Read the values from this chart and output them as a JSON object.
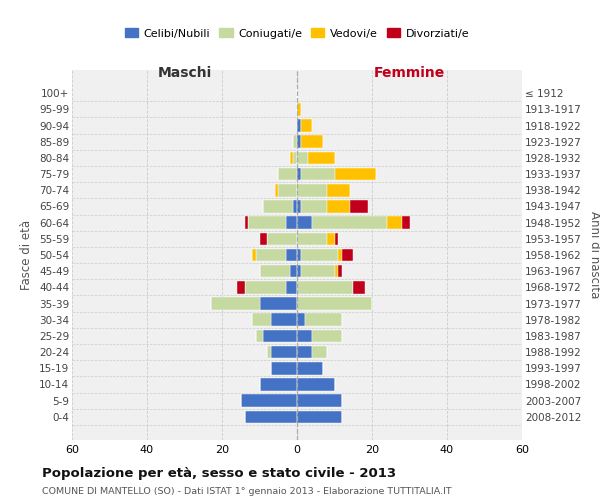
{
  "age_groups": [
    "0-4",
    "5-9",
    "10-14",
    "15-19",
    "20-24",
    "25-29",
    "30-34",
    "35-39",
    "40-44",
    "45-49",
    "50-54",
    "55-59",
    "60-64",
    "65-69",
    "70-74",
    "75-79",
    "80-84",
    "85-89",
    "90-94",
    "95-99",
    "100+"
  ],
  "birth_years": [
    "2008-2012",
    "2003-2007",
    "1998-2002",
    "1993-1997",
    "1988-1992",
    "1983-1987",
    "1978-1982",
    "1973-1977",
    "1968-1972",
    "1963-1967",
    "1958-1962",
    "1953-1957",
    "1948-1952",
    "1943-1947",
    "1938-1942",
    "1933-1937",
    "1928-1932",
    "1923-1927",
    "1918-1922",
    "1913-1917",
    "≤ 1912"
  ],
  "colors": {
    "celibi": "#4472c4",
    "coniugati": "#c5d9a0",
    "vedovi": "#ffc000",
    "divorziati": "#c0001a"
  },
  "males": {
    "celibi": [
      14,
      15,
      10,
      7,
      7,
      9,
      7,
      10,
      3,
      2,
      3,
      0,
      3,
      1,
      0,
      0,
      0,
      0,
      0,
      0,
      0
    ],
    "coniugati": [
      0,
      0,
      0,
      0,
      1,
      2,
      5,
      13,
      11,
      8,
      8,
      8,
      10,
      8,
      5,
      5,
      1,
      1,
      0,
      0,
      0
    ],
    "vedovi": [
      0,
      0,
      0,
      0,
      0,
      0,
      0,
      0,
      0,
      0,
      1,
      0,
      0,
      0,
      1,
      0,
      1,
      0,
      0,
      0,
      0
    ],
    "divorziati": [
      0,
      0,
      0,
      0,
      0,
      0,
      0,
      0,
      2,
      0,
      0,
      2,
      1,
      0,
      0,
      0,
      0,
      0,
      0,
      0,
      0
    ]
  },
  "females": {
    "celibi": [
      12,
      12,
      10,
      7,
      4,
      4,
      2,
      0,
      0,
      1,
      1,
      0,
      4,
      1,
      0,
      1,
      0,
      1,
      1,
      0,
      0
    ],
    "coniugati": [
      0,
      0,
      0,
      0,
      4,
      8,
      10,
      20,
      15,
      9,
      10,
      8,
      20,
      7,
      8,
      9,
      3,
      0,
      0,
      0,
      0
    ],
    "vedovi": [
      0,
      0,
      0,
      0,
      0,
      0,
      0,
      0,
      0,
      1,
      1,
      2,
      4,
      6,
      6,
      11,
      7,
      6,
      3,
      1,
      0
    ],
    "divorziati": [
      0,
      0,
      0,
      0,
      0,
      0,
      0,
      0,
      3,
      1,
      3,
      1,
      2,
      5,
      0,
      0,
      0,
      0,
      0,
      0,
      0
    ]
  },
  "xlim": 60,
  "title": "Popolazione per età, sesso e stato civile - 2013",
  "subtitle": "COMUNE DI MANTELLO (SO) - Dati ISTAT 1° gennaio 2013 - Elaborazione TUTTITALIA.IT",
  "ylabel_left": "Fasce di età",
  "ylabel_right": "Anni di nascita",
  "xlabel_left": "Maschi",
  "xlabel_right": "Femmine",
  "legend_labels": [
    "Celibi/Nubili",
    "Coniugati/e",
    "Vedovi/e",
    "Divorziati/e"
  ],
  "bg_color": "#f0f0f0",
  "grid_color": "#cccccc"
}
